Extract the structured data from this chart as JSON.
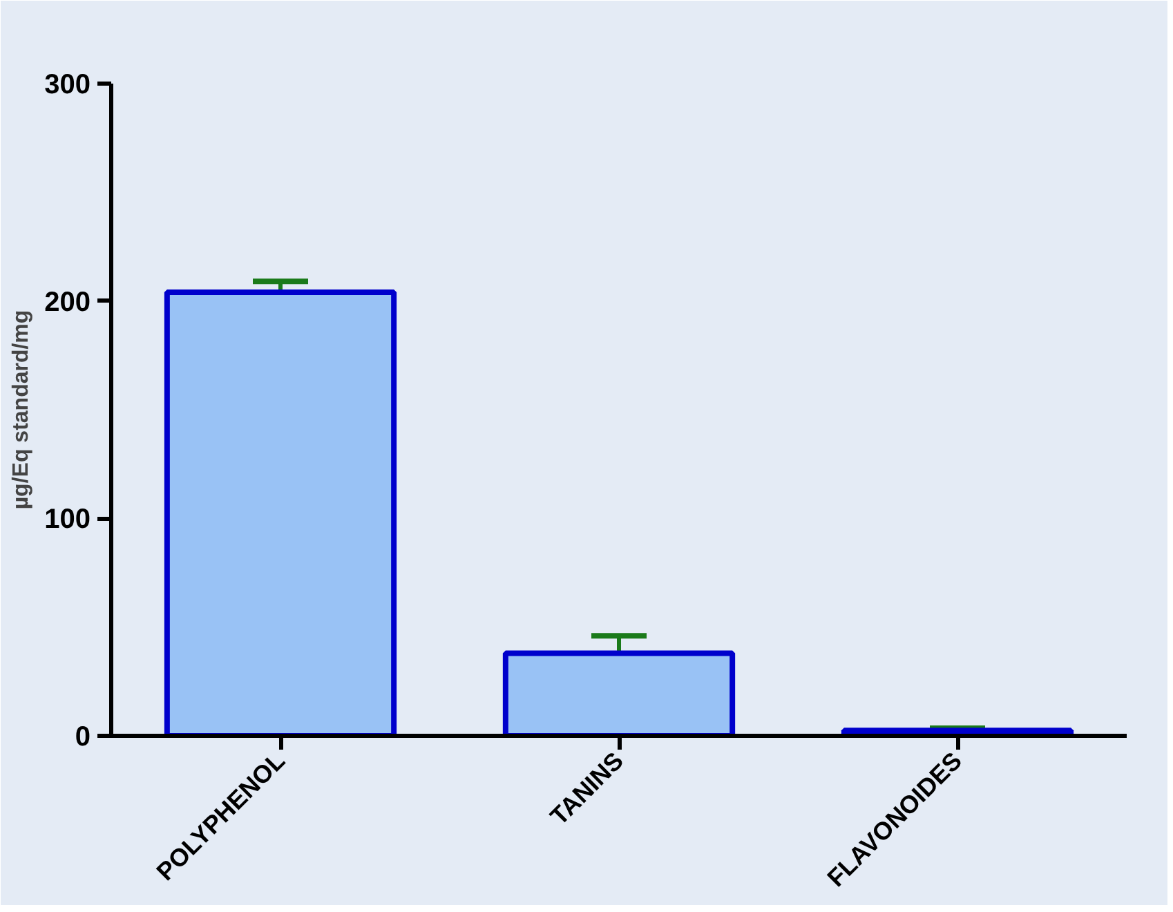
{
  "chart_data": {
    "type": "bar",
    "ylabel": "µg/Eq standard/mg",
    "categories": [
      "POLYPHENOL",
      "TANINS",
      "FLAVONOIDES"
    ],
    "values": [
      204,
      38,
      2.5
    ],
    "errors": [
      5,
      8,
      1
    ],
    "color": "#99c2f5",
    "ylim": [
      0,
      300
    ],
    "yticks": [
      0,
      100,
      200,
      300
    ],
    "grid": false
  }
}
